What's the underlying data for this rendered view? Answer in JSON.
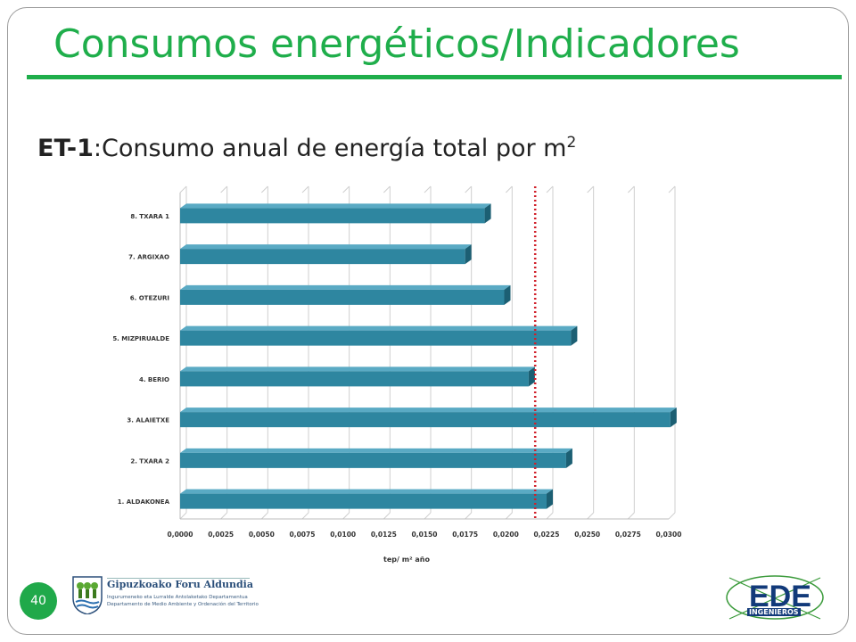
{
  "slide": {
    "title": "Consumos energéticos/Indicadores",
    "subtitle_code": "ET-1",
    "subtitle_text": ":Consumo anual de energía total por m",
    "subtitle_sup": "2",
    "page_number": "40"
  },
  "logos": {
    "left_name": "Gipuzkoako Foru Aldundia",
    "left_line1": "Ingurumeneko eta Lurralde Antolaketako Departamentua",
    "left_line2": "Departamento de Medio Ambiente y Ordenación del Territorio",
    "right_main": "EDE",
    "right_sub": "INGENIEROS"
  },
  "colors": {
    "accent_green": "#1fae4b",
    "bar_fill": "#2e86a0",
    "bar_dark": "#1c5f73",
    "reference_line": "#d0202a"
  },
  "chart_data": {
    "type": "bar",
    "orientation": "horizontal",
    "categories": [
      "8. TXARA 1",
      "7. ARGIXAO",
      "6. OTEZURI",
      "5. MIZPIRUALDE",
      "4. BERIO",
      "3. ALAIETXE",
      "2. TXARA 2",
      "1. ALDAKONEA"
    ],
    "values": [
      0.0187,
      0.0175,
      0.0199,
      0.024,
      0.0214,
      0.0301,
      0.0237,
      0.0225
    ],
    "xlabel": "tep/ m² año",
    "xlim": [
      0,
      0.03
    ],
    "xticks": [
      "0,0000",
      "0,0025",
      "0,0050",
      "0,0075",
      "0,0100",
      "0,0125",
      "0,0150",
      "0,0175",
      "0,0200",
      "0,0225",
      "0,0250",
      "0,0275",
      "0,0300"
    ],
    "reference_line": 0.0218,
    "grid": true
  }
}
